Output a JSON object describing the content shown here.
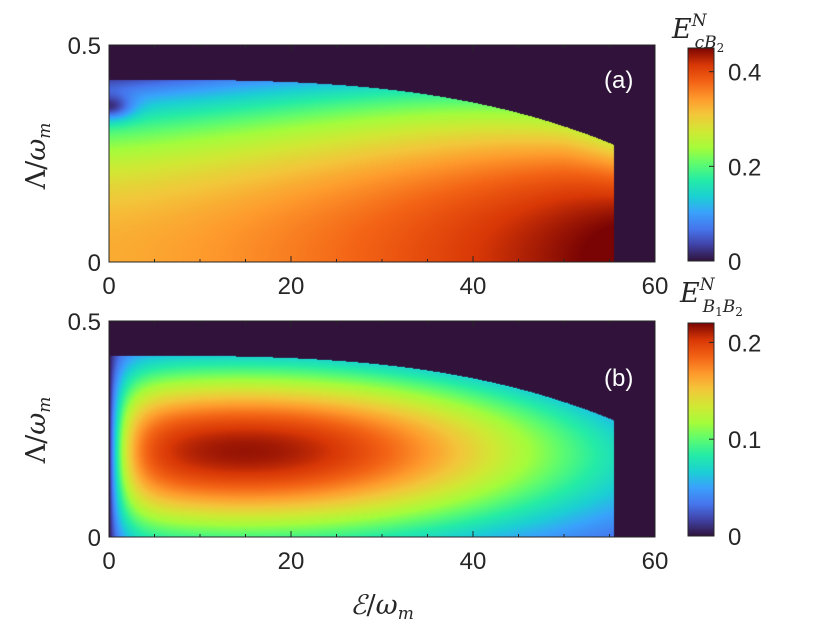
{
  "chart_data": [
    {
      "type": "heatmap",
      "panel_label": "(a)",
      "xlabel": "",
      "ylabel": "Λ/ω_m",
      "xlim": [
        0,
        60
      ],
      "ylim": [
        0,
        0.5
      ],
      "xticks": [
        "0",
        "20",
        "40",
        "60"
      ],
      "yticks": [
        "0",
        "0.5"
      ],
      "colorbar": {
        "title": "E^N_cB2",
        "range": [
          0,
          0.45
        ],
        "ticks": [
          "0",
          "0.2",
          "0.4"
        ],
        "colormap": "turbo"
      },
      "region": {
        "boundary_lambda_at_E0": 0.42,
        "boundary_lambda_at_E55": 0.27,
        "cutoff_E": 55.5,
        "outside_value": 0
      },
      "values": {
        "low_lambda_small_E": 0.33,
        "low_lambda_max_near_E52": 0.45,
        "near_boundary_small_E": 0.1,
        "dip_corner_E0_lambda_0.36": 0.03
      }
    },
    {
      "type": "heatmap",
      "panel_label": "(b)",
      "xlabel": "ℰ/ω_m",
      "ylabel": "Λ/ω_m",
      "xlim": [
        0,
        60
      ],
      "ylim": [
        0,
        0.5
      ],
      "xticks": [
        "0",
        "20",
        "40",
        "60"
      ],
      "yticks": [
        "0",
        "0.5"
      ],
      "colorbar": {
        "title": "E^N_B1B2",
        "range": [
          0,
          0.22
        ],
        "ticks": [
          "0",
          "0.1",
          "0.2"
        ],
        "colormap": "turbo"
      },
      "region": {
        "boundary_lambda_at_E0": 0.42,
        "boundary_lambda_at_E55": 0.27,
        "cutoff_E": 55.5,
        "outside_value": 0
      },
      "values": {
        "peak": 0.215,
        "peak_location": [
          15,
          0.2
        ],
        "edge_near_E0": 0
      }
    }
  ]
}
